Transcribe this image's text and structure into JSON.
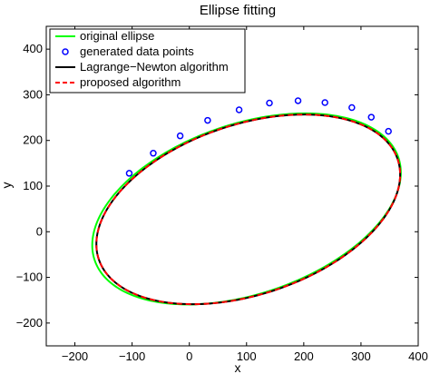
{
  "chart_data": {
    "type": "line",
    "title": "Ellipse fitting",
    "xlabel": "x",
    "ylabel": "y",
    "xlim": [
      -250,
      400
    ],
    "ylim": [
      -250,
      450
    ],
    "xticks": [
      -200,
      -100,
      0,
      100,
      200,
      300,
      400
    ],
    "yticks": [
      -200,
      -100,
      0,
      100,
      200,
      300,
      400
    ],
    "xtick_labels": [
      "−200",
      "−100",
      "0",
      "100",
      "200",
      "300",
      "400"
    ],
    "ytick_labels": [
      "−200",
      "−100",
      "0",
      "100",
      "200",
      "300",
      "400"
    ],
    "grid": false,
    "legend_position": "top-left",
    "series": [
      {
        "name": "original ellipse",
        "kind": "ellipse",
        "color": "#00ff00",
        "style": "solid",
        "center": [
          100,
          50
        ],
        "semi_axes": [
          290,
          180
        ],
        "rotation_deg": 28
      },
      {
        "name": "generated data points",
        "kind": "points",
        "color": "#0000ff",
        "points": [
          [
            -105,
            128
          ],
          [
            -63,
            172
          ],
          [
            -16,
            210
          ],
          [
            32,
            244
          ],
          [
            87,
            267
          ],
          [
            140,
            282
          ],
          [
            190,
            287
          ],
          [
            237,
            283
          ],
          [
            284,
            272
          ],
          [
            318,
            251
          ],
          [
            348,
            220
          ]
        ]
      },
      {
        "name": "Lagrange−Newton algorithm",
        "kind": "ellipse",
        "color": "#000000",
        "style": "solid",
        "center": [
          103,
          49
        ],
        "semi_axes": [
          285,
          180
        ],
        "rotation_deg": 28
      },
      {
        "name": "proposed algorithm",
        "kind": "ellipse",
        "color": "#ff0000",
        "style": "dashed",
        "center": [
          103,
          49
        ],
        "semi_axes": [
          285,
          180
        ],
        "rotation_deg": 28
      }
    ]
  }
}
